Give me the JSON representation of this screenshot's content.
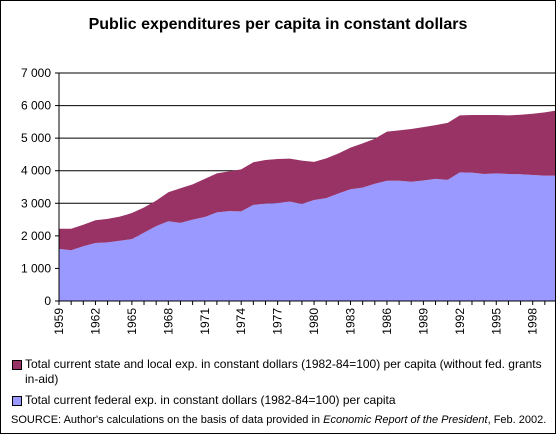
{
  "chart_data": {
    "type": "area",
    "stacked": true,
    "title": "Public expenditures per capita in constant dollars",
    "xlabel": "",
    "ylabel": "",
    "ylim": [
      0,
      7000
    ],
    "yticks": [
      "0",
      "1 000",
      "2 000",
      "3 000",
      "4 000",
      "5 000",
      "6 000",
      "7 000"
    ],
    "ytick_values": [
      0,
      1000,
      2000,
      3000,
      4000,
      5000,
      6000,
      7000
    ],
    "xtick_labels": [
      "1959",
      "1962",
      "1965",
      "1968",
      "1971",
      "1974",
      "1977",
      "1980",
      "1983",
      "1986",
      "1989",
      "1992",
      "1995",
      "1998"
    ],
    "x": [
      1959,
      1960,
      1961,
      1962,
      1963,
      1964,
      1965,
      1966,
      1967,
      1968,
      1969,
      1970,
      1971,
      1972,
      1973,
      1974,
      1975,
      1976,
      1977,
      1978,
      1979,
      1980,
      1981,
      1982,
      1983,
      1984,
      1985,
      1986,
      1987,
      1988,
      1989,
      1990,
      1991,
      1992,
      1993,
      1994,
      1995,
      1996,
      1997,
      1998,
      1999,
      2000
    ],
    "series": [
      {
        "name": "Total current federal exp. in constant dollars (1982-84=100) per capita",
        "color": "#9999ff",
        "values": [
          1600,
          1560,
          1680,
          1780,
          1800,
          1850,
          1900,
          2100,
          2300,
          2450,
          2400,
          2500,
          2580,
          2720,
          2760,
          2750,
          2950,
          2990,
          3010,
          3050,
          2980,
          3100,
          3160,
          3300,
          3430,
          3480,
          3600,
          3690,
          3690,
          3660,
          3700,
          3750,
          3720,
          3950,
          3940,
          3900,
          3920,
          3900,
          3890,
          3870,
          3850,
          3850
        ]
      },
      {
        "name": "Total current state and local exp. in constant dollars (1982-84=100) per capita (without fed. grants in-aid)",
        "color": "#993366",
        "values": [
          620,
          660,
          660,
          700,
          720,
          740,
          800,
          770,
          780,
          890,
          1060,
          1080,
          1170,
          1200,
          1220,
          1290,
          1310,
          1340,
          1350,
          1320,
          1330,
          1170,
          1220,
          1230,
          1280,
          1360,
          1380,
          1510,
          1550,
          1620,
          1640,
          1650,
          1750,
          1750,
          1770,
          1810,
          1790,
          1800,
          1830,
          1880,
          1940,
          2000
        ]
      }
    ],
    "grid": "horizontal",
    "legend_position": "bottom"
  },
  "legend": {
    "item1": "Total current state and local exp. in constant dollars (1982-84=100) per capita (without fed. grants in-aid)",
    "item2": "Total current federal exp. in constant dollars (1982-84=100) per capita"
  },
  "source": {
    "prefix": "SOURCE: Author's calculations on the basis of data provided in ",
    "publication": "Economic Report of the President",
    "suffix": ", Feb. 2002."
  }
}
